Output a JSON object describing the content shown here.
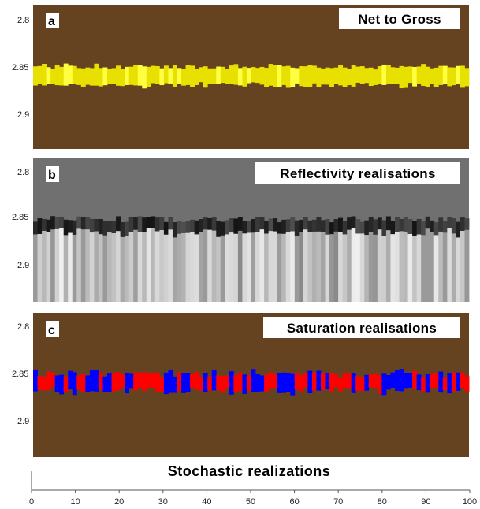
{
  "chart_data": [
    {
      "type": "heatmap",
      "panel_letter": "a",
      "title": "Net to Gross",
      "y_ticks": [
        "2.8",
        "2.85",
        "2.9"
      ],
      "y_tick_values": [
        2.8,
        2.85,
        2.9
      ],
      "ylim": [
        2.78,
        2.95
      ],
      "y_inverted": true,
      "xlim": [
        0,
        100
      ],
      "background_color": "#654321",
      "band_color": "#e8e000",
      "band_highlight_color": "#ffff40",
      "band_center": 2.864,
      "band_thickness": 0.022,
      "num_realizations": 100
    },
    {
      "type": "heatmap",
      "panel_letter": "b",
      "title": "Reflectivity realisations",
      "y_ticks": [
        "2.8",
        "2.85",
        "2.9"
      ],
      "y_tick_values": [
        2.8,
        2.85,
        2.9
      ],
      "ylim": [
        2.78,
        2.95
      ],
      "y_inverted": true,
      "xlim": [
        0,
        100
      ],
      "top_color": "#707070",
      "dark_band_color": "#202020",
      "lower_colors": [
        "#9a9a9a",
        "#b8b8b8",
        "#d8d8d8",
        "#8a8a8a"
      ],
      "band_center": 2.862,
      "num_realizations": 100
    },
    {
      "type": "heatmap",
      "panel_letter": "c",
      "title": "Saturation realisations",
      "y_ticks": [
        "2.8",
        "2.85",
        "2.9"
      ],
      "y_tick_values": [
        2.8,
        2.85,
        2.9
      ],
      "ylim": [
        2.78,
        2.95
      ],
      "y_inverted": true,
      "xlim": [
        0,
        100
      ],
      "background_color": "#654321",
      "brine_color": "#ff0000",
      "gas_color": "#0000ff",
      "band_center": 2.862,
      "num_realizations": 100
    }
  ],
  "x_axis": {
    "title": "Stochastic realizations",
    "ticks": [
      "0",
      "10",
      "20",
      "30",
      "40",
      "50",
      "60",
      "70",
      "80",
      "90",
      "100"
    ],
    "tick_values": [
      0,
      10,
      20,
      30,
      40,
      50,
      60,
      70,
      80,
      90,
      100
    ]
  }
}
